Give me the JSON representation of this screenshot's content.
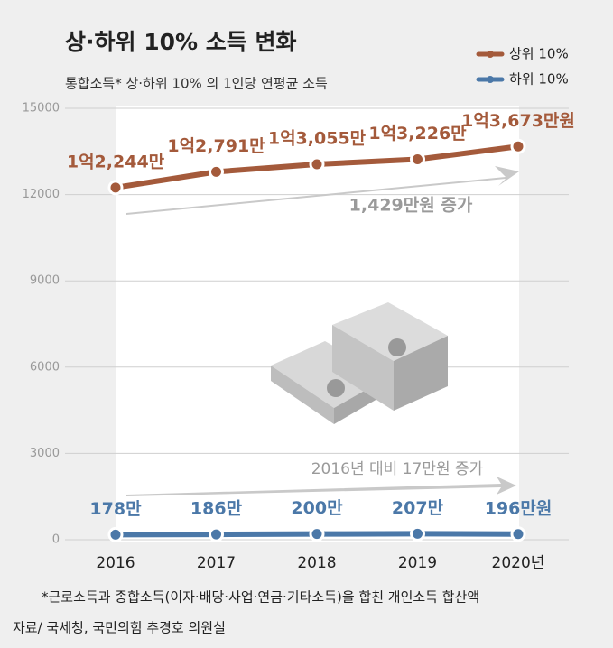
{
  "chart_data": {
    "type": "line",
    "title": "상·하위 10% 소득 변화",
    "subtitle": "통합소득* 상·하위 10% 의 1인당 연평균 소득",
    "categories": [
      "2016",
      "2017",
      "2018",
      "2019",
      "2020년"
    ],
    "series": [
      {
        "name": "상위 10%",
        "color": "#a45a3b",
        "values": [
          12244,
          12791,
          13055,
          13226,
          13673
        ],
        "value_labels": [
          "1억2,244만",
          "1억2,791만",
          "1억3,055만",
          "1억3,226만",
          "1억3,673만원"
        ]
      },
      {
        "name": "하위 10%",
        "color": "#4b78a8",
        "values": [
          178,
          186,
          200,
          207,
          196
        ],
        "value_labels": [
          "178만",
          "186만",
          "200만",
          "207만",
          "196만원"
        ]
      }
    ],
    "ylim": [
      0,
      15000
    ],
    "yticks": [
      0,
      3000,
      6000,
      9000,
      12000,
      15000
    ],
    "grid": true,
    "legend": "top-right",
    "annotations": [
      "1,429만원 증가",
      "2016년 대비 17만원 증가"
    ],
    "note": "*근로소득과 종합소득(이자·배당·사업·연금·기타소득)을 합친 개인소득 합산액",
    "source": "자료/ 국세청, 국민의힘 추경호 의원실"
  }
}
